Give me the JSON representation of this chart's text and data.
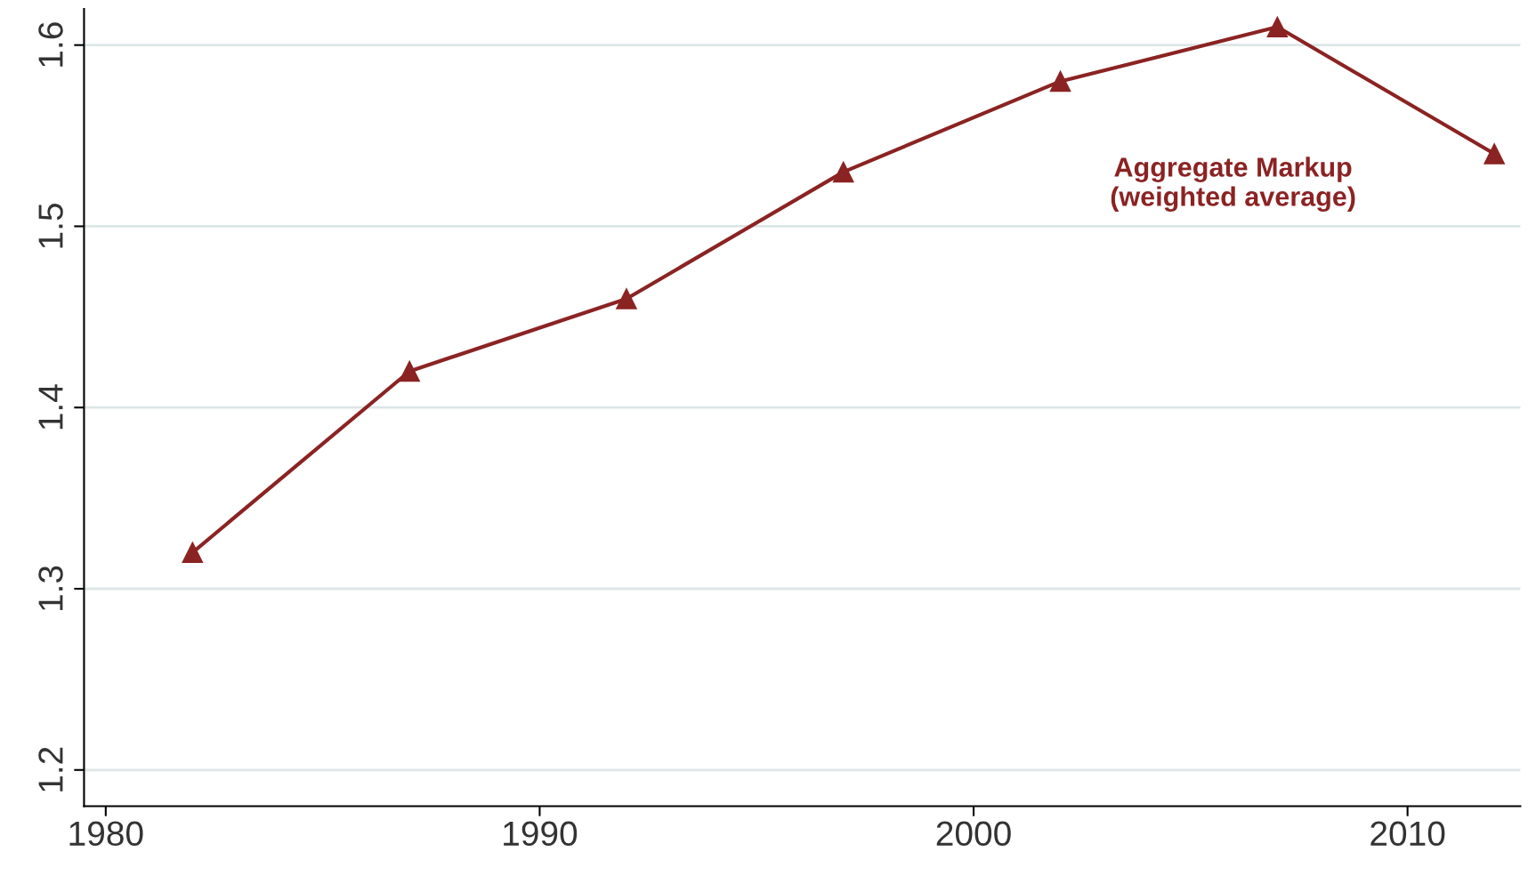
{
  "chart_data": {
    "type": "line",
    "x": [
      1982,
      1987,
      1992,
      1997,
      2002,
      2007,
      2012
    ],
    "series": [
      {
        "name": "Aggregate Markup\n(weighted average)",
        "color": "#8b2323",
        "values": [
          1.32,
          1.42,
          1.46,
          1.53,
          1.58,
          1.61,
          1.54
        ]
      }
    ],
    "xlim": [
      1979.5,
      2012.6
    ],
    "xticks": [
      1980,
      1990,
      2000,
      2010
    ],
    "ylim": [
      1.18,
      1.62
    ],
    "yticks": [
      1.2,
      1.3,
      1.4,
      1.5,
      1.6
    ],
    "grid": "y",
    "marker": "triangle",
    "line_style": "solid"
  }
}
